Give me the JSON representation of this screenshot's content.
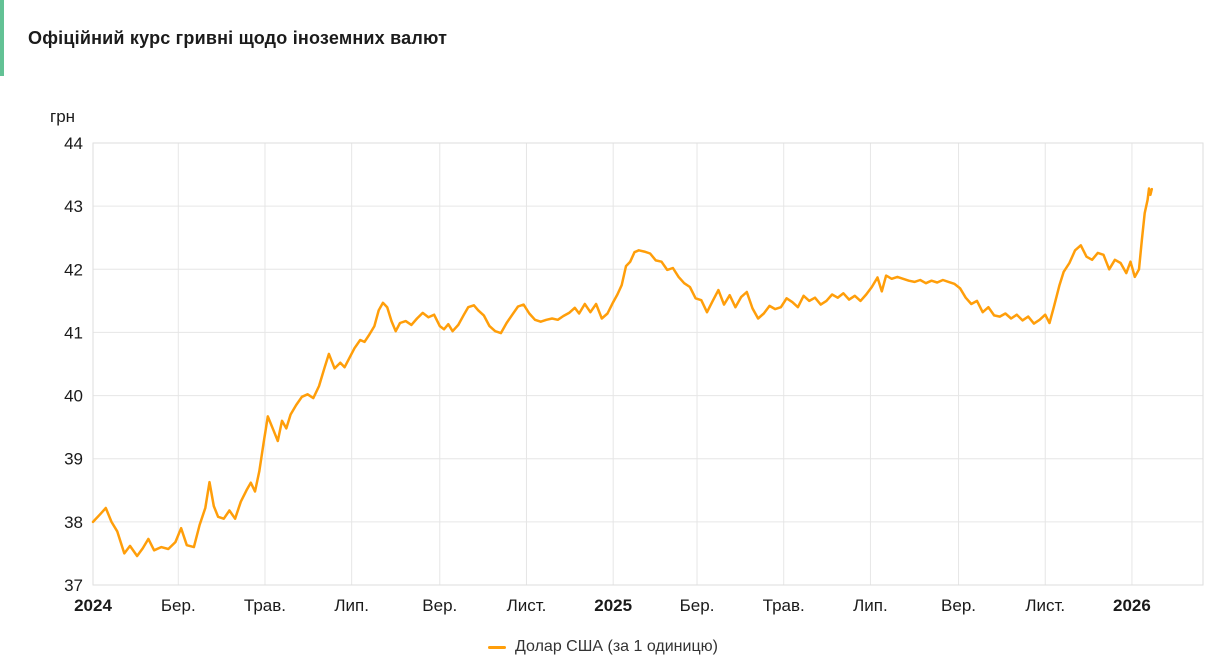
{
  "card": {
    "title": "Офіційний курс гривні щодо іноземних валют",
    "accent_color": "#63c295"
  },
  "chart_data": {
    "type": "line",
    "title": "Офіційний курс гривні щодо іноземних валют",
    "unit_label": "грн",
    "ylabel": "грн",
    "xlabel": "",
    "ylim": [
      37,
      44
    ],
    "y_ticks": [
      44,
      43,
      42,
      41,
      40,
      39,
      38,
      37
    ],
    "x_range": [
      "2024-01-01",
      "2026-02-20"
    ],
    "grid": true,
    "legend_position": "bottom",
    "grid_color": "#e6e6e6",
    "border_color": "#dedede",
    "x_ticks": [
      {
        "label": "2024",
        "date": "2024-01-01",
        "bold": true
      },
      {
        "label": "Бер.",
        "date": "2024-03-01",
        "bold": false
      },
      {
        "label": "Трав.",
        "date": "2024-05-01",
        "bold": false
      },
      {
        "label": "Лип.",
        "date": "2024-07-01",
        "bold": false
      },
      {
        "label": "Вер.",
        "date": "2024-09-01",
        "bold": false
      },
      {
        "label": "Лист.",
        "date": "2024-11-01",
        "bold": false
      },
      {
        "label": "2025",
        "date": "2025-01-01",
        "bold": true
      },
      {
        "label": "Бер.",
        "date": "2025-03-01",
        "bold": false
      },
      {
        "label": "Трав.",
        "date": "2025-05-01",
        "bold": false
      },
      {
        "label": "Лип.",
        "date": "2025-07-01",
        "bold": false
      },
      {
        "label": "Вер.",
        "date": "2025-09-01",
        "bold": false
      },
      {
        "label": "Лист.",
        "date": "2025-11-01",
        "bold": false
      },
      {
        "label": "2026",
        "date": "2026-01-01",
        "bold": true
      }
    ],
    "series": [
      {
        "name": "Долар США (за 1 одиницю)",
        "color": "#ff9e0a",
        "points": [
          [
            "2024-01-01",
            38.0
          ],
          [
            "2024-01-06",
            38.12
          ],
          [
            "2024-01-10",
            38.22
          ],
          [
            "2024-01-14",
            38.0
          ],
          [
            "2024-01-18",
            37.85
          ],
          [
            "2024-01-23",
            37.5
          ],
          [
            "2024-01-27",
            37.62
          ],
          [
            "2024-02-01",
            37.46
          ],
          [
            "2024-02-05",
            37.58
          ],
          [
            "2024-02-09",
            37.73
          ],
          [
            "2024-02-13",
            37.55
          ],
          [
            "2024-02-18",
            37.6
          ],
          [
            "2024-02-23",
            37.57
          ],
          [
            "2024-02-28",
            37.68
          ],
          [
            "2024-03-03",
            37.9
          ],
          [
            "2024-03-07",
            37.63
          ],
          [
            "2024-03-12",
            37.6
          ],
          [
            "2024-03-16",
            37.95
          ],
          [
            "2024-03-20",
            38.22
          ],
          [
            "2024-03-23",
            38.63
          ],
          [
            "2024-03-26",
            38.25
          ],
          [
            "2024-03-29",
            38.08
          ],
          [
            "2024-04-02",
            38.05
          ],
          [
            "2024-04-06",
            38.18
          ],
          [
            "2024-04-10",
            38.05
          ],
          [
            "2024-04-14",
            38.32
          ],
          [
            "2024-04-18",
            38.5
          ],
          [
            "2024-04-21",
            38.62
          ],
          [
            "2024-04-24",
            38.48
          ],
          [
            "2024-04-27",
            38.8
          ],
          [
            "2024-04-30",
            39.25
          ],
          [
            "2024-05-03",
            39.67
          ],
          [
            "2024-05-07",
            39.45
          ],
          [
            "2024-05-10",
            39.28
          ],
          [
            "2024-05-13",
            39.6
          ],
          [
            "2024-05-16",
            39.48
          ],
          [
            "2024-05-19",
            39.7
          ],
          [
            "2024-05-23",
            39.85
          ],
          [
            "2024-05-27",
            39.98
          ],
          [
            "2024-05-31",
            40.02
          ],
          [
            "2024-06-04",
            39.96
          ],
          [
            "2024-06-08",
            40.15
          ],
          [
            "2024-06-12",
            40.45
          ],
          [
            "2024-06-15",
            40.66
          ],
          [
            "2024-06-19",
            40.43
          ],
          [
            "2024-06-23",
            40.52
          ],
          [
            "2024-06-26",
            40.45
          ],
          [
            "2024-06-30",
            40.62
          ],
          [
            "2024-07-03",
            40.75
          ],
          [
            "2024-07-07",
            40.88
          ],
          [
            "2024-07-10",
            40.85
          ],
          [
            "2024-07-13",
            40.95
          ],
          [
            "2024-07-17",
            41.1
          ],
          [
            "2024-07-20",
            41.35
          ],
          [
            "2024-07-23",
            41.47
          ],
          [
            "2024-07-26",
            41.4
          ],
          [
            "2024-07-29",
            41.18
          ],
          [
            "2024-08-01",
            41.02
          ],
          [
            "2024-08-04",
            41.15
          ],
          [
            "2024-08-08",
            41.18
          ],
          [
            "2024-08-12",
            41.12
          ],
          [
            "2024-08-16",
            41.22
          ],
          [
            "2024-08-20",
            41.31
          ],
          [
            "2024-08-24",
            41.24
          ],
          [
            "2024-08-28",
            41.28
          ],
          [
            "2024-09-01",
            41.1
          ],
          [
            "2024-09-04",
            41.05
          ],
          [
            "2024-09-07",
            41.13
          ],
          [
            "2024-09-10",
            41.02
          ],
          [
            "2024-09-14",
            41.12
          ],
          [
            "2024-09-18",
            41.28
          ],
          [
            "2024-09-21",
            41.4
          ],
          [
            "2024-09-25",
            41.43
          ],
          [
            "2024-09-28",
            41.35
          ],
          [
            "2024-10-02",
            41.27
          ],
          [
            "2024-10-06",
            41.1
          ],
          [
            "2024-10-10",
            41.02
          ],
          [
            "2024-10-14",
            40.99
          ],
          [
            "2024-10-18",
            41.15
          ],
          [
            "2024-10-22",
            41.28
          ],
          [
            "2024-10-26",
            41.41
          ],
          [
            "2024-10-30",
            41.44
          ],
          [
            "2024-11-03",
            41.3
          ],
          [
            "2024-11-07",
            41.2
          ],
          [
            "2024-11-11",
            41.17
          ],
          [
            "2024-11-15",
            41.2
          ],
          [
            "2024-11-19",
            41.22
          ],
          [
            "2024-11-23",
            41.2
          ],
          [
            "2024-11-27",
            41.26
          ],
          [
            "2024-12-01",
            41.31
          ],
          [
            "2024-12-05",
            41.39
          ],
          [
            "2024-12-08",
            41.3
          ],
          [
            "2024-12-12",
            41.45
          ],
          [
            "2024-12-16",
            41.32
          ],
          [
            "2024-12-20",
            41.45
          ],
          [
            "2024-12-24",
            41.22
          ],
          [
            "2024-12-28",
            41.3
          ],
          [
            "2025-01-01",
            41.48
          ],
          [
            "2025-01-04",
            41.6
          ],
          [
            "2025-01-07",
            41.75
          ],
          [
            "2025-01-10",
            42.05
          ],
          [
            "2025-01-13",
            42.12
          ],
          [
            "2025-01-16",
            42.27
          ],
          [
            "2025-01-19",
            42.3
          ],
          [
            "2025-01-23",
            42.28
          ],
          [
            "2025-01-27",
            42.25
          ],
          [
            "2025-01-31",
            42.14
          ],
          [
            "2025-02-04",
            42.12
          ],
          [
            "2025-02-08",
            41.99
          ],
          [
            "2025-02-12",
            42.02
          ],
          [
            "2025-02-16",
            41.88
          ],
          [
            "2025-02-20",
            41.78
          ],
          [
            "2025-02-24",
            41.72
          ],
          [
            "2025-02-28",
            41.54
          ],
          [
            "2025-03-04",
            41.51
          ],
          [
            "2025-03-08",
            41.32
          ],
          [
            "2025-03-12",
            41.5
          ],
          [
            "2025-03-16",
            41.67
          ],
          [
            "2025-03-20",
            41.44
          ],
          [
            "2025-03-24",
            41.59
          ],
          [
            "2025-03-28",
            41.4
          ],
          [
            "2025-04-01",
            41.56
          ],
          [
            "2025-04-05",
            41.64
          ],
          [
            "2025-04-09",
            41.38
          ],
          [
            "2025-04-13",
            41.22
          ],
          [
            "2025-04-17",
            41.3
          ],
          [
            "2025-04-21",
            41.42
          ],
          [
            "2025-04-25",
            41.37
          ],
          [
            "2025-04-29",
            41.4
          ],
          [
            "2025-05-03",
            41.54
          ],
          [
            "2025-05-07",
            41.48
          ],
          [
            "2025-05-11",
            41.4
          ],
          [
            "2025-05-15",
            41.58
          ],
          [
            "2025-05-19",
            41.5
          ],
          [
            "2025-05-23",
            41.55
          ],
          [
            "2025-05-27",
            41.44
          ],
          [
            "2025-05-31",
            41.5
          ],
          [
            "2025-06-04",
            41.6
          ],
          [
            "2025-06-08",
            41.55
          ],
          [
            "2025-06-12",
            41.62
          ],
          [
            "2025-06-16",
            41.52
          ],
          [
            "2025-06-20",
            41.58
          ],
          [
            "2025-06-24",
            41.5
          ],
          [
            "2025-06-28",
            41.6
          ],
          [
            "2025-07-02",
            41.72
          ],
          [
            "2025-07-06",
            41.87
          ],
          [
            "2025-07-09",
            41.65
          ],
          [
            "2025-07-12",
            41.9
          ],
          [
            "2025-07-16",
            41.85
          ],
          [
            "2025-07-20",
            41.88
          ],
          [
            "2025-07-24",
            41.85
          ],
          [
            "2025-07-28",
            41.82
          ],
          [
            "2025-08-01",
            41.8
          ],
          [
            "2025-08-05",
            41.83
          ],
          [
            "2025-08-09",
            41.78
          ],
          [
            "2025-08-13",
            41.82
          ],
          [
            "2025-08-17",
            41.79
          ],
          [
            "2025-08-21",
            41.83
          ],
          [
            "2025-08-25",
            41.8
          ],
          [
            "2025-08-29",
            41.77
          ],
          [
            "2025-09-02",
            41.7
          ],
          [
            "2025-09-06",
            41.55
          ],
          [
            "2025-09-10",
            41.45
          ],
          [
            "2025-09-14",
            41.5
          ],
          [
            "2025-09-18",
            41.32
          ],
          [
            "2025-09-22",
            41.4
          ],
          [
            "2025-09-26",
            41.27
          ],
          [
            "2025-09-30",
            41.25
          ],
          [
            "2025-10-04",
            41.3
          ],
          [
            "2025-10-08",
            41.22
          ],
          [
            "2025-10-12",
            41.28
          ],
          [
            "2025-10-16",
            41.19
          ],
          [
            "2025-10-20",
            41.25
          ],
          [
            "2025-10-24",
            41.14
          ],
          [
            "2025-10-28",
            41.2
          ],
          [
            "2025-11-01",
            41.28
          ],
          [
            "2025-11-04",
            41.15
          ],
          [
            "2025-11-07",
            41.4
          ],
          [
            "2025-11-11",
            41.75
          ],
          [
            "2025-11-14",
            41.96
          ],
          [
            "2025-11-18",
            42.1
          ],
          [
            "2025-11-22",
            42.3
          ],
          [
            "2025-11-26",
            42.38
          ],
          [
            "2025-11-30",
            42.2
          ],
          [
            "2025-12-04",
            42.15
          ],
          [
            "2025-12-08",
            42.26
          ],
          [
            "2025-12-12",
            42.23
          ],
          [
            "2025-12-16",
            42.0
          ],
          [
            "2025-12-20",
            42.15
          ],
          [
            "2025-12-24",
            42.1
          ],
          [
            "2025-12-28",
            41.94
          ],
          [
            "2025-12-31",
            42.12
          ],
          [
            "2026-01-03",
            41.88
          ],
          [
            "2026-01-06",
            42.0
          ],
          [
            "2026-01-08",
            42.47
          ],
          [
            "2026-01-10",
            42.89
          ],
          [
            "2026-01-12",
            43.1
          ],
          [
            "2026-01-13",
            43.28
          ],
          [
            "2026-01-14",
            43.18
          ],
          [
            "2026-01-15",
            43.27
          ]
        ]
      }
    ]
  }
}
